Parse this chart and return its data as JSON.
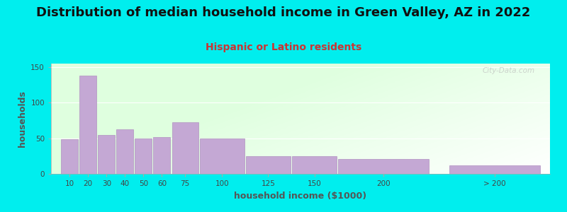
{
  "title": "Distribution of median household income in Green Valley, AZ in 2022",
  "subtitle": "Hispanic or Latino residents",
  "xlabel": "household income ($1000)",
  "ylabel": "households",
  "background_outer": "#00EEEE",
  "bar_color": "#c4a8d4",
  "bar_edge_color": "#b090c0",
  "title_fontsize": 13,
  "subtitle_fontsize": 10,
  "subtitle_color": "#cc3333",
  "categories": [
    "10",
    "20",
    "30",
    "40",
    "50",
    "60",
    "75",
    "100",
    "125",
    "150",
    "200",
    "> 200"
  ],
  "values": [
    49,
    138,
    55,
    63,
    50,
    52,
    73,
    50,
    25,
    25,
    21,
    12
  ],
  "bar_widths": [
    10,
    10,
    10,
    10,
    10,
    10,
    15,
    25,
    25,
    25,
    50,
    50
  ],
  "bar_lefts": [
    5,
    15,
    25,
    35,
    45,
    55,
    65,
    80,
    105,
    130,
    155,
    215
  ],
  "xlim": [
    0,
    270
  ],
  "ylim": [
    0,
    155
  ],
  "yticks": [
    0,
    50,
    100,
    150
  ],
  "watermark": "City-Data.com"
}
